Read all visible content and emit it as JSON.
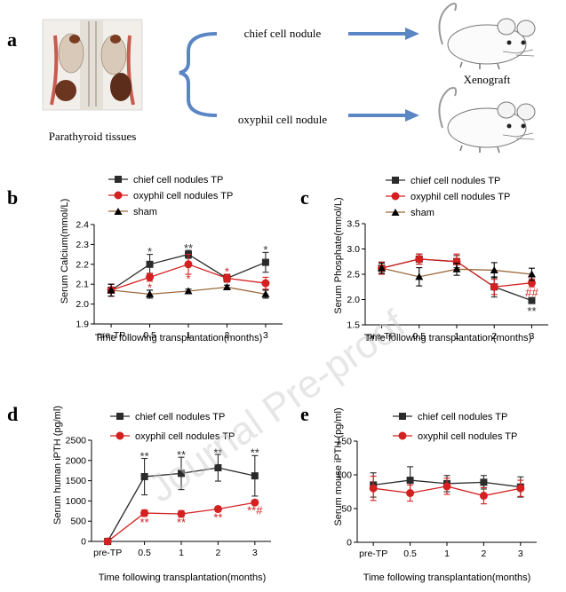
{
  "panel_a": {
    "label": "a",
    "tissue_caption": "Parathyroid tissues",
    "arrow_top_label": "chief cell nodule",
    "arrow_bottom_label": "oxyphil cell nodule",
    "target_label": "Xenograft"
  },
  "watermark": "Journal Pre-proof",
  "colors": {
    "chief": "#2b2b2b",
    "oxyphil": "#d42020",
    "sham": "#9b6a3c",
    "arrow": "#5b86c4",
    "star_black": "#333333",
    "star_red": "#d42020"
  },
  "chart_data": [
    {
      "panel": "b",
      "type": "line",
      "ylabel": "Serum Calcium(mmol/L)",
      "xlabel": "Time following transplantation(months)",
      "categories": [
        "pre-TP",
        "0.5",
        "1",
        "2",
        "3"
      ],
      "ylim": [
        1.9,
        2.4
      ],
      "yticks": [
        1.9,
        2.0,
        2.1,
        2.2,
        2.3,
        2.4
      ],
      "yticklabels": [
        "1.9",
        "2.0",
        "2.1",
        "2.2",
        "2.3",
        "2.4"
      ],
      "series": [
        {
          "name": "chief cell nodules TP",
          "key": "chief",
          "marker": "square",
          "values": [
            2.07,
            2.2,
            2.25,
            2.13,
            2.21
          ],
          "errors": [
            0.03,
            0.05,
            0.02,
            0.02,
            0.05
          ]
        },
        {
          "name": "oxyphil cell nodules TP",
          "key": "oxyphil",
          "marker": "circle",
          "values": [
            2.07,
            2.135,
            2.2,
            2.13,
            2.105
          ],
          "errors": [
            0.03,
            0.02,
            0.05,
            0.02,
            0.03
          ]
        },
        {
          "name": "sham",
          "key": "sham",
          "marker": "triangle",
          "values": [
            2.07,
            2.05,
            2.065,
            2.085,
            2.05
          ],
          "errors": [
            0.03,
            0.02,
            0.01,
            0.01,
            0.02
          ]
        }
      ],
      "annotations": [
        {
          "cat": 1,
          "value": 2.265,
          "text": "*",
          "color": "black"
        },
        {
          "cat": 2,
          "value": 2.285,
          "text": "**",
          "color": "black"
        },
        {
          "cat": 4,
          "value": 2.275,
          "text": "*",
          "color": "black"
        },
        {
          "cat": 1,
          "value": 2.085,
          "text": "*",
          "color": "red"
        },
        {
          "cat": 2,
          "value": 2.13,
          "text": "*",
          "color": "red"
        },
        {
          "cat": 3,
          "value": 2.165,
          "text": "*",
          "color": "red"
        }
      ]
    },
    {
      "panel": "c",
      "type": "line",
      "ylabel": "Serum Phosphate(mmol/L)",
      "xlabel": "Time following transplantation(months)",
      "categories": [
        "pre-TP",
        "0.5",
        "1",
        "2",
        "3"
      ],
      "ylim": [
        1.5,
        3.5
      ],
      "yticks": [
        1.5,
        2.0,
        2.5,
        3.0,
        3.5
      ],
      "yticklabels": [
        "1.5",
        "2.0",
        "2.5",
        "3.0",
        "3.5"
      ],
      "series": [
        {
          "name": "chief cell nodules TP",
          "key": "chief",
          "marker": "square",
          "values": [
            2.62,
            2.8,
            2.75,
            2.25,
            1.98
          ],
          "errors": [
            0.12,
            0.1,
            0.12,
            0.2,
            0.03
          ]
        },
        {
          "name": "oxyphil cell nodules TP",
          "key": "oxyphil",
          "marker": "circle",
          "values": [
            2.62,
            2.8,
            2.75,
            2.25,
            2.33
          ],
          "errors": [
            0.12,
            0.1,
            0.15,
            0.15,
            0.08
          ]
        },
        {
          "name": "sham",
          "key": "sham",
          "marker": "triangle",
          "values": [
            2.62,
            2.45,
            2.6,
            2.58,
            2.5
          ],
          "errors": [
            0.1,
            0.18,
            0.12,
            0.15,
            0.12
          ]
        }
      ],
      "annotations": [
        {
          "cat": 4,
          "value": 2.15,
          "text": "##",
          "color": "red"
        },
        {
          "cat": 4,
          "value": 1.78,
          "text": "**",
          "color": "black"
        }
      ]
    },
    {
      "panel": "d",
      "type": "line",
      "ylabel": "Serum human iPTH (pg/ml)",
      "xlabel": "Time following transplantation(months)",
      "categories": [
        "pre-TP",
        "0.5",
        "1",
        "2",
        "3"
      ],
      "ylim": [
        0,
        2500
      ],
      "yticks": [
        0,
        500,
        1000,
        1500,
        2000,
        2500
      ],
      "yticklabels": [
        "0",
        "500",
        "1000",
        "1500",
        "2000",
        "2500"
      ],
      "series": [
        {
          "name": "chief cell nodules TP",
          "key": "chief",
          "marker": "square",
          "values": [
            0,
            1600,
            1680,
            1820,
            1620
          ],
          "errors": [
            0,
            450,
            400,
            330,
            500
          ]
        },
        {
          "name": "oxyphil cell nodules TP",
          "key": "oxyphil",
          "marker": "circle",
          "values": [
            0,
            700,
            680,
            800,
            960
          ],
          "errors": [
            0,
            80,
            80,
            60,
            60
          ]
        }
      ],
      "annotations": [
        {
          "cat": 1,
          "value": 2120,
          "text": "**",
          "color": "black"
        },
        {
          "cat": 2,
          "value": 2150,
          "text": "**",
          "color": "black"
        },
        {
          "cat": 3,
          "value": 2200,
          "text": "**",
          "color": "black"
        },
        {
          "cat": 4,
          "value": 2200,
          "text": "**",
          "color": "black"
        },
        {
          "cat": 1,
          "value": 480,
          "text": "**",
          "color": "red"
        },
        {
          "cat": 2,
          "value": 480,
          "text": "**",
          "color": "red"
        },
        {
          "cat": 3,
          "value": 600,
          "text": "**",
          "color": "red"
        },
        {
          "cat": 4,
          "value": 780,
          "text": "**#",
          "color": "red"
        }
      ]
    },
    {
      "panel": "e",
      "type": "line",
      "ylabel": "Serum mouse iPTH (pg/ml)",
      "xlabel": "Time following transplantation(months)",
      "categories": [
        "pre-TP",
        "0.5",
        "1",
        "2",
        "3"
      ],
      "ylim": [
        0,
        150
      ],
      "yticks": [
        0,
        50,
        100,
        150
      ],
      "yticklabels": [
        "0",
        "50",
        "100",
        "150"
      ],
      "series": [
        {
          "name": "chief cell nodules TP",
          "key": "chief",
          "marker": "square",
          "values": [
            85,
            92,
            87,
            89,
            82
          ],
          "errors": [
            18,
            20,
            12,
            10,
            15
          ]
        },
        {
          "name": "oxyphil cell nodules TP",
          "key": "oxyphil",
          "marker": "circle",
          "values": [
            80,
            73,
            83,
            69,
            80
          ],
          "errors": [
            18,
            12,
            12,
            12,
            12
          ]
        }
      ],
      "annotations": []
    }
  ]
}
